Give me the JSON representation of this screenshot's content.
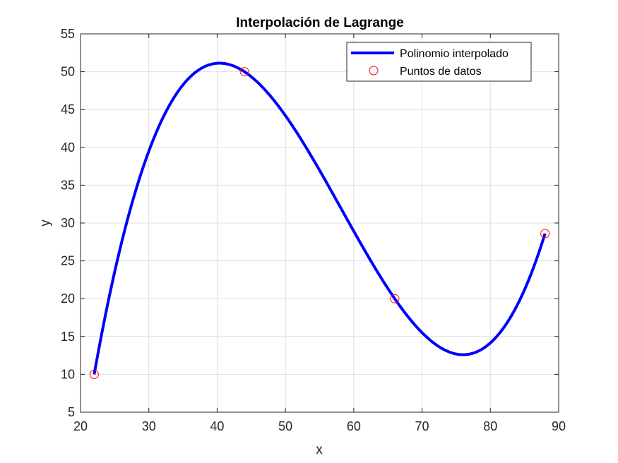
{
  "chart_data": {
    "type": "line",
    "title": "Interpolación de Lagrange",
    "xlabel": "x",
    "ylabel": "y",
    "xlim": [
      20,
      90
    ],
    "ylim": [
      5,
      55
    ],
    "xticks": [
      20,
      30,
      40,
      50,
      60,
      70,
      80,
      90
    ],
    "yticks": [
      5,
      10,
      15,
      20,
      25,
      30,
      35,
      40,
      45,
      50,
      55
    ],
    "grid": true,
    "legend_position": "top-right",
    "series": [
      {
        "name": "Polinomio interpolado",
        "kind": "line",
        "color": "#0000ff",
        "x_range": [
          22,
          88
        ],
        "interpolates_points": true
      },
      {
        "name": "Puntos de datos",
        "kind": "marker",
        "marker": "circle",
        "color": "#ff0000",
        "x": [
          22,
          44,
          66,
          88
        ],
        "y": [
          10,
          50,
          20,
          28.6
        ]
      }
    ]
  }
}
